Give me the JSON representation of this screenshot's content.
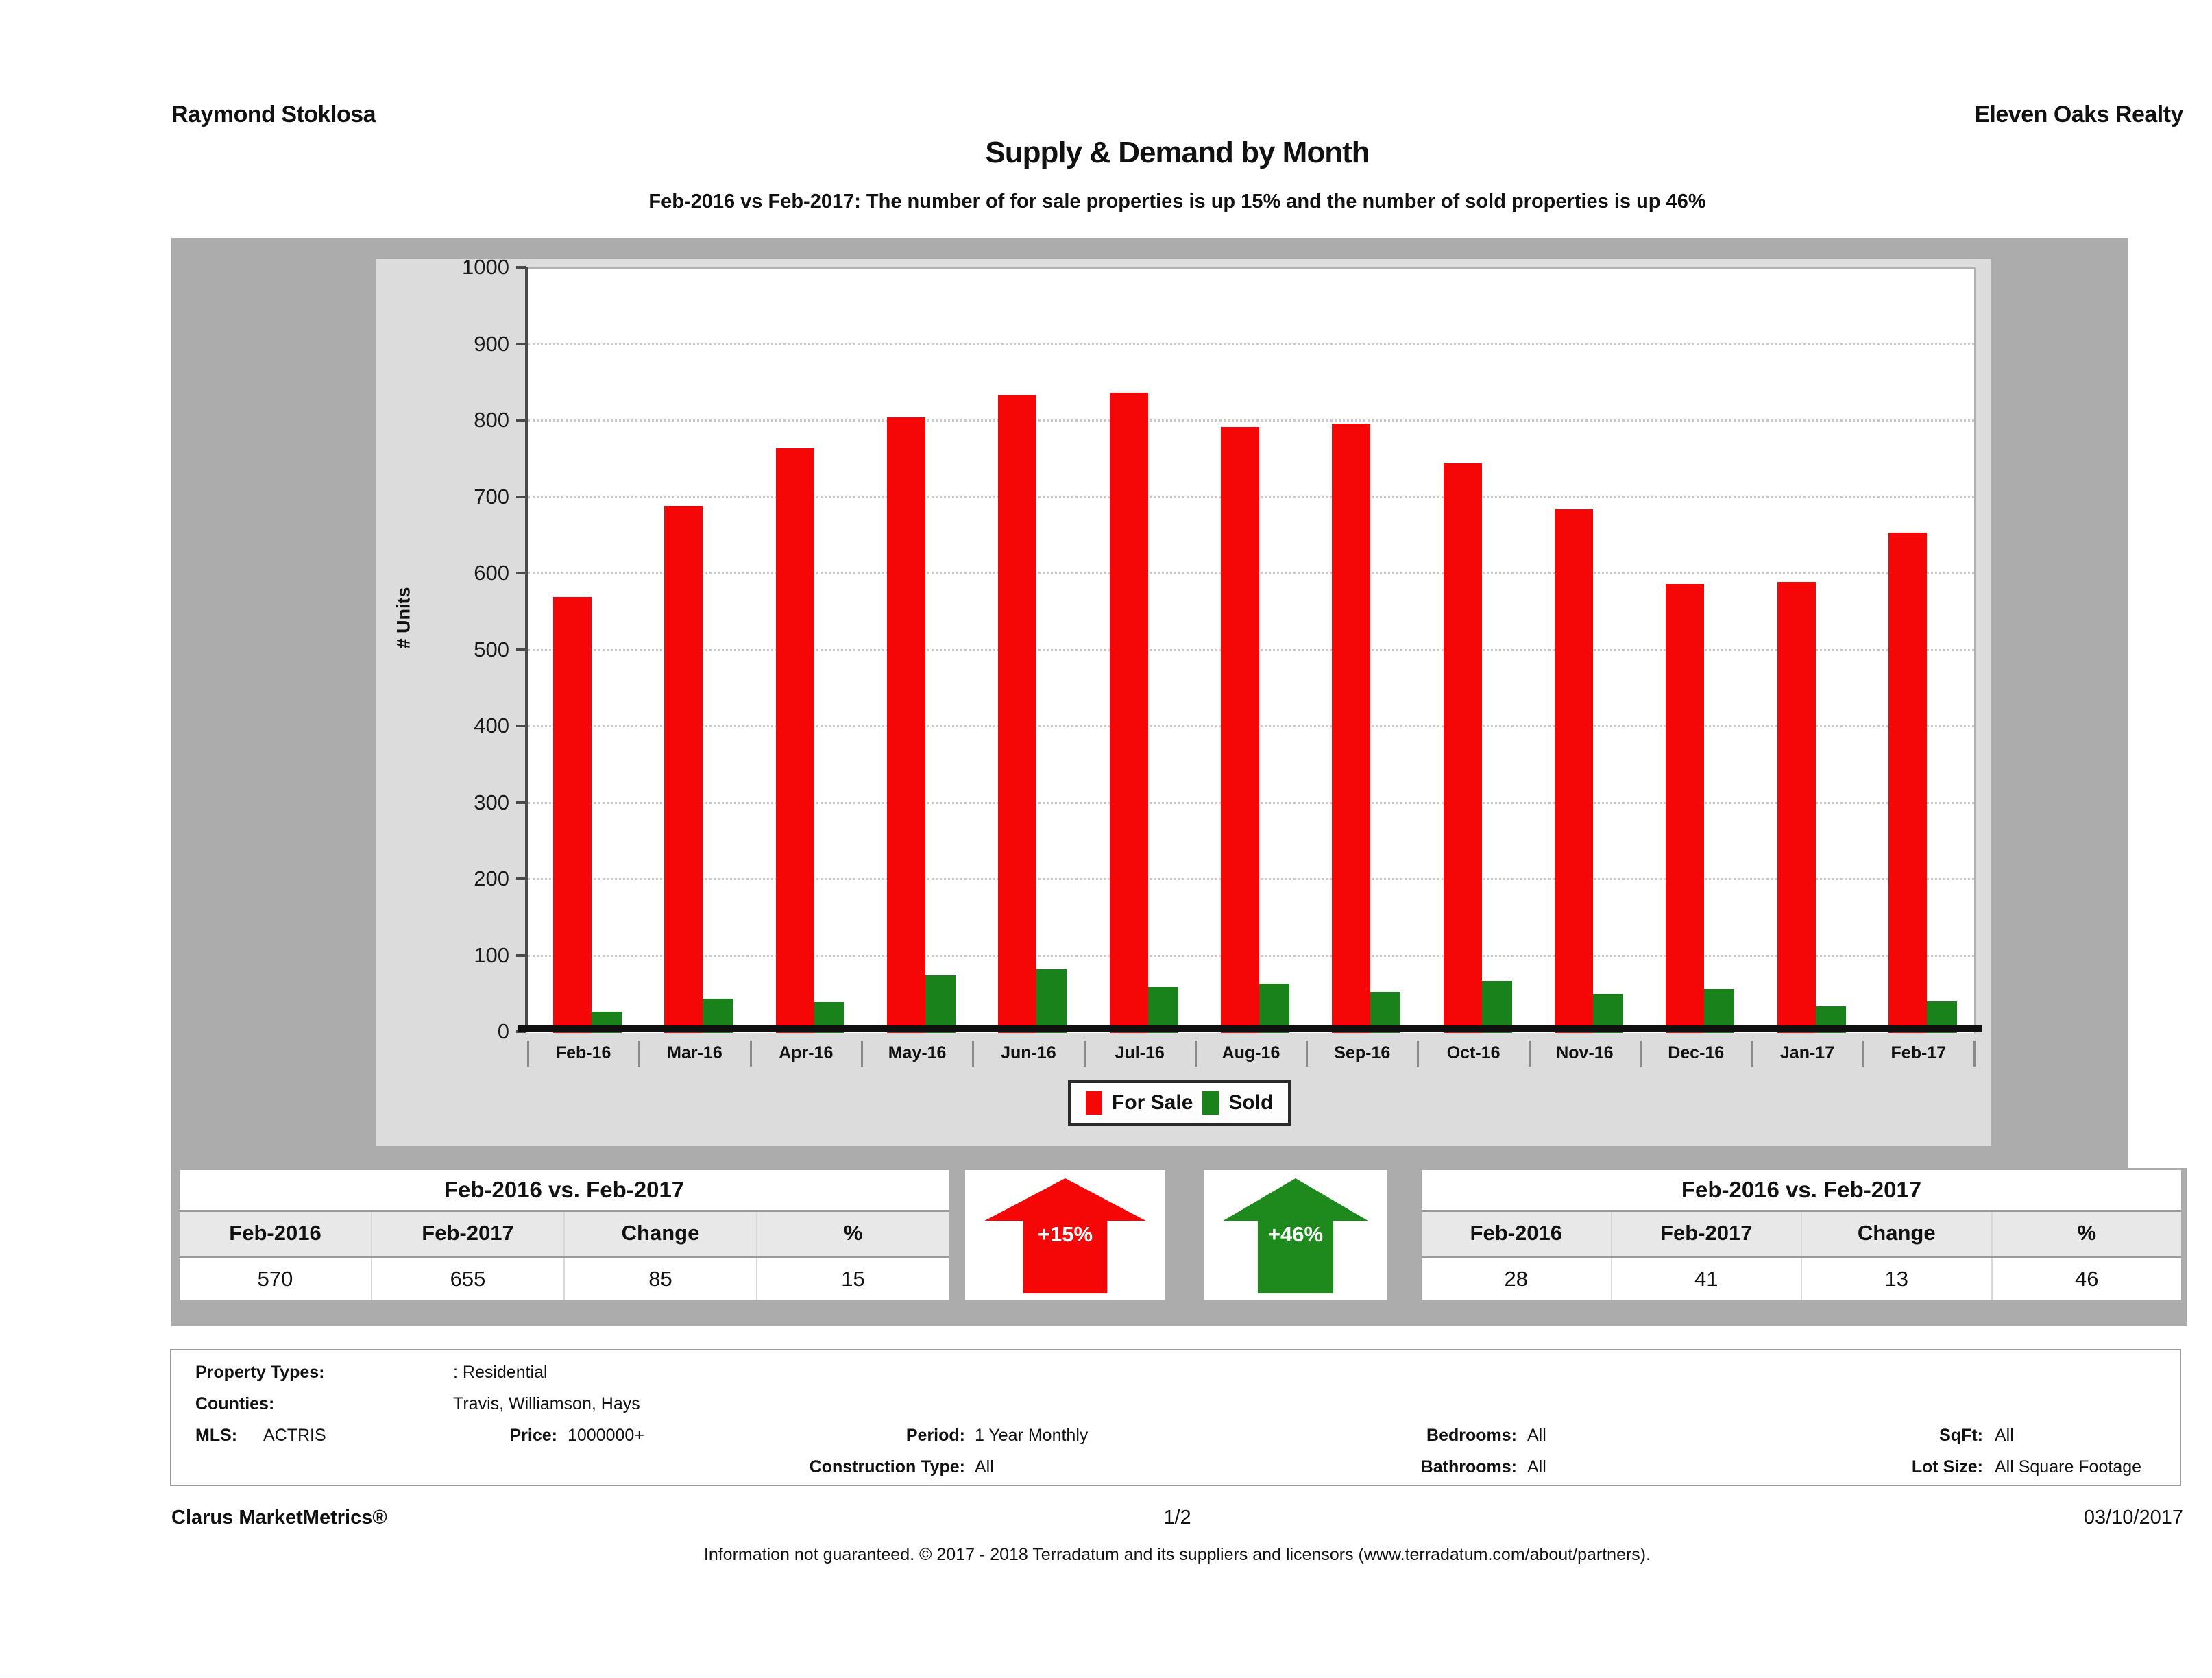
{
  "header": {
    "agent_name": "Raymond Stoklosa",
    "company": "Eleven Oaks Realty"
  },
  "title": "Supply & Demand by Month",
  "subtitle": "Feb-2016 vs Feb-2017: The number of for sale properties is up 15% and the number of sold properties is up 46%",
  "chart_data": {
    "type": "bar",
    "title": "Supply & Demand by Month",
    "xlabel": "",
    "ylabel": "# Units",
    "ylim": [
      0,
      1000
    ],
    "ytick_interval": 100,
    "grid": "horizontal-dotted",
    "legend_position": "bottom",
    "categories": [
      "Feb-16",
      "Mar-16",
      "Apr-16",
      "May-16",
      "Jun-16",
      "Jul-16",
      "Aug-16",
      "Sep-16",
      "Oct-16",
      "Nov-16",
      "Dec-16",
      "Jan-17",
      "Feb-17"
    ],
    "series": [
      {
        "name": "For Sale",
        "color": "#f50707",
        "values": [
          570,
          690,
          765,
          805,
          835,
          838,
          793,
          797,
          745,
          685,
          587,
          590,
          655
        ]
      },
      {
        "name": "Sold",
        "color": "#1a821a",
        "values": [
          28,
          45,
          40,
          75,
          83,
          60,
          65,
          54,
          68,
          51,
          57,
          35,
          41
        ]
      }
    ]
  },
  "summary_tables": {
    "for_sale": {
      "title": "Feb-2016 vs. Feb-2017",
      "columns": [
        "Feb-2016",
        "Feb-2017",
        "Change",
        "%"
      ],
      "values": [
        "570",
        "655",
        "85",
        "15"
      ]
    },
    "sold": {
      "title": "Feb-2016 vs. Feb-2017",
      "columns": [
        "Feb-2016",
        "Feb-2017",
        "Change",
        "%"
      ],
      "values": [
        "28",
        "41",
        "13",
        "46"
      ]
    }
  },
  "arrows": {
    "for_sale": {
      "label": "+15%",
      "direction": "up",
      "color": "#f50707"
    },
    "sold": {
      "label": "+46%",
      "direction": "up",
      "color": "#1e8a1e"
    }
  },
  "filters": {
    "property_types_label": "Property Types:",
    "property_types_value": ": Residential",
    "counties_label": "Counties:",
    "counties_value": "Travis, Williamson, Hays",
    "mls_label": "MLS:",
    "mls_value": "ACTRIS",
    "price_label": "Price:",
    "price_value": "1000000+",
    "period_label": "Period:",
    "period_value": "1 Year Monthly",
    "construction_label": "Construction Type:",
    "construction_value": "All",
    "bedrooms_label": "Bedrooms:",
    "bedrooms_value": "All",
    "bathrooms_label": "Bathrooms:",
    "bathrooms_value": "All",
    "sqft_label": "SqFt:",
    "sqft_value": "All",
    "lot_size_label": "Lot Size:",
    "lot_size_value": "All Square Footage"
  },
  "footer": {
    "product": "Clarus MarketMetrics®",
    "page": "1/2",
    "date": "03/10/2017",
    "disclaimer": "Information not guaranteed. © 2017 - 2018 Terradatum and its suppliers and licensors (www.terradatum.com/about/partners)."
  }
}
